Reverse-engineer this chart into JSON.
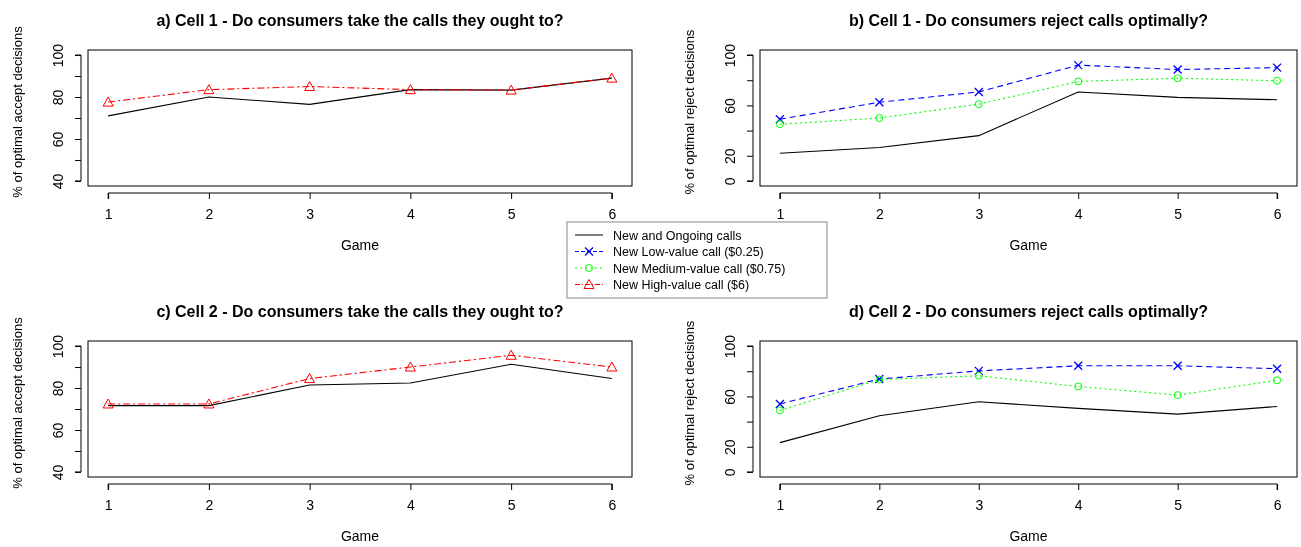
{
  "chart_data": [
    {
      "type": "line",
      "title": "a) Cell 1 - Do consumers take the calls they ought to?",
      "xlabel": "Game",
      "ylabel": "% of optimal accept decisions",
      "x": [
        1,
        2,
        3,
        4,
        5,
        6
      ],
      "xlim": [
        0.8,
        6.2
      ],
      "xticks": [
        1,
        2,
        3,
        4,
        5,
        6
      ],
      "ylim": [
        37.6,
        102.4
      ],
      "yticks": [
        40,
        {
          "value": 50,
          "label": null
        },
        60,
        {
          "value": 70,
          "label": null
        },
        80,
        {
          "value": 90,
          "label": null
        },
        100
      ],
      "legend": "bottom right",
      "series": [
        {
          "name": "New and Ongoing calls",
          "color": "#000000",
          "line_style": "solid",
          "marker": "none",
          "values": [
            71,
            80,
            76.5,
            83.5,
            83.3,
            89
          ]
        },
        {
          "name": "New High-value call ($6)",
          "color": "#ff0000",
          "line_style": "dashed",
          "marker": "triangle",
          "values": [
            77.6,
            83.5,
            85,
            83.5,
            83.3,
            89
          ]
        }
      ]
    },
    {
      "type": "line",
      "title": "b) Cell 1 - Do consumers reject calls optimally?",
      "xlabel": "Game",
      "ylabel": "% of optimal reject decisions",
      "x": [
        1,
        2,
        3,
        4,
        5,
        6
      ],
      "xlim": [
        0.8,
        6.2
      ],
      "xticks": [
        1,
        2,
        3,
        4,
        5,
        6
      ],
      "ylim": [
        -4,
        104
      ],
      "yticks": [
        0,
        20,
        {
          "value": 40,
          "label": null
        },
        60,
        {
          "value": 80,
          "label": null
        },
        100
      ],
      "legend": "bottom left",
      "series": [
        {
          "name": "New and Ongoing calls",
          "color": "#000000",
          "line_style": "solid",
          "marker": "none",
          "values": [
            22,
            26.6,
            36,
            70.7,
            66.4,
            64.5
          ]
        },
        {
          "name": "New Low-value call ($0.25)",
          "color": "#0000ff",
          "line_style": "dashed",
          "marker": "cross",
          "values": [
            49,
            62.5,
            70.7,
            92,
            88.5,
            90
          ]
        },
        {
          "name": "New Medium-value call ($0.75)",
          "color": "#00ff00",
          "line_style": "dotted",
          "marker": "circle",
          "values": [
            45,
            50,
            61,
            79,
            81.6,
            79.6
          ]
        }
      ]
    },
    {
      "type": "line",
      "title": "c) Cell 2 - Do consumers take the calls they ought to?",
      "xlabel": "Game",
      "ylabel": "% of optimal accept decisions",
      "x": [
        1,
        2,
        3,
        4,
        5,
        6
      ],
      "xlim": [
        0.8,
        6.2
      ],
      "xticks": [
        1,
        2,
        3,
        4,
        5,
        6
      ],
      "ylim": [
        37.6,
        102.4
      ],
      "yticks": [
        40,
        {
          "value": 50,
          "label": null
        },
        60,
        {
          "value": 70,
          "label": null
        },
        80,
        {
          "value": 90,
          "label": null
        },
        100
      ],
      "legend": "top right",
      "series": [
        {
          "name": "New and Ongoing calls",
          "color": "#000000",
          "line_style": "solid",
          "marker": "none",
          "values": [
            71.6,
            71.6,
            81.4,
            82.4,
            91.3,
            84.5
          ]
        },
        {
          "name": "New High-value call ($6)",
          "color": "#ff0000",
          "line_style": "dashed",
          "marker": "triangle",
          "values": [
            72.4,
            72.4,
            84.5,
            90,
            95.6,
            90
          ]
        }
      ]
    },
    {
      "type": "line",
      "title": "d) Cell 2 - Do consumers reject calls optimally?",
      "xlabel": "Game",
      "ylabel": "% of optimal reject decisions",
      "x": [
        1,
        2,
        3,
        4,
        5,
        6
      ],
      "xlim": [
        0.8,
        6.2
      ],
      "xticks": [
        1,
        2,
        3,
        4,
        5,
        6
      ],
      "ylim": [
        -4,
        104
      ],
      "yticks": [
        0,
        20,
        {
          "value": 40,
          "label": null
        },
        60,
        {
          "value": 80,
          "label": null
        },
        100
      ],
      "legend": "top left",
      "series": [
        {
          "name": "New and Ongoing calls",
          "color": "#000000",
          "line_style": "solid",
          "marker": "none",
          "values": [
            23.3,
            44.6,
            55.7,
            50.5,
            45.9,
            52
          ]
        },
        {
          "name": "New Low-value call ($0.25)",
          "color": "#0000ff",
          "line_style": "dashed",
          "marker": "cross",
          "values": [
            54,
            73.8,
            80.3,
            84.3,
            84.3,
            82
          ]
        },
        {
          "name": "New Medium-value call ($0.75)",
          "color": "#00ff00",
          "line_style": "dotted",
          "marker": "circle",
          "values": [
            48.9,
            73.4,
            76.4,
            67.9,
            61,
            72.8
          ]
        }
      ]
    }
  ]
}
